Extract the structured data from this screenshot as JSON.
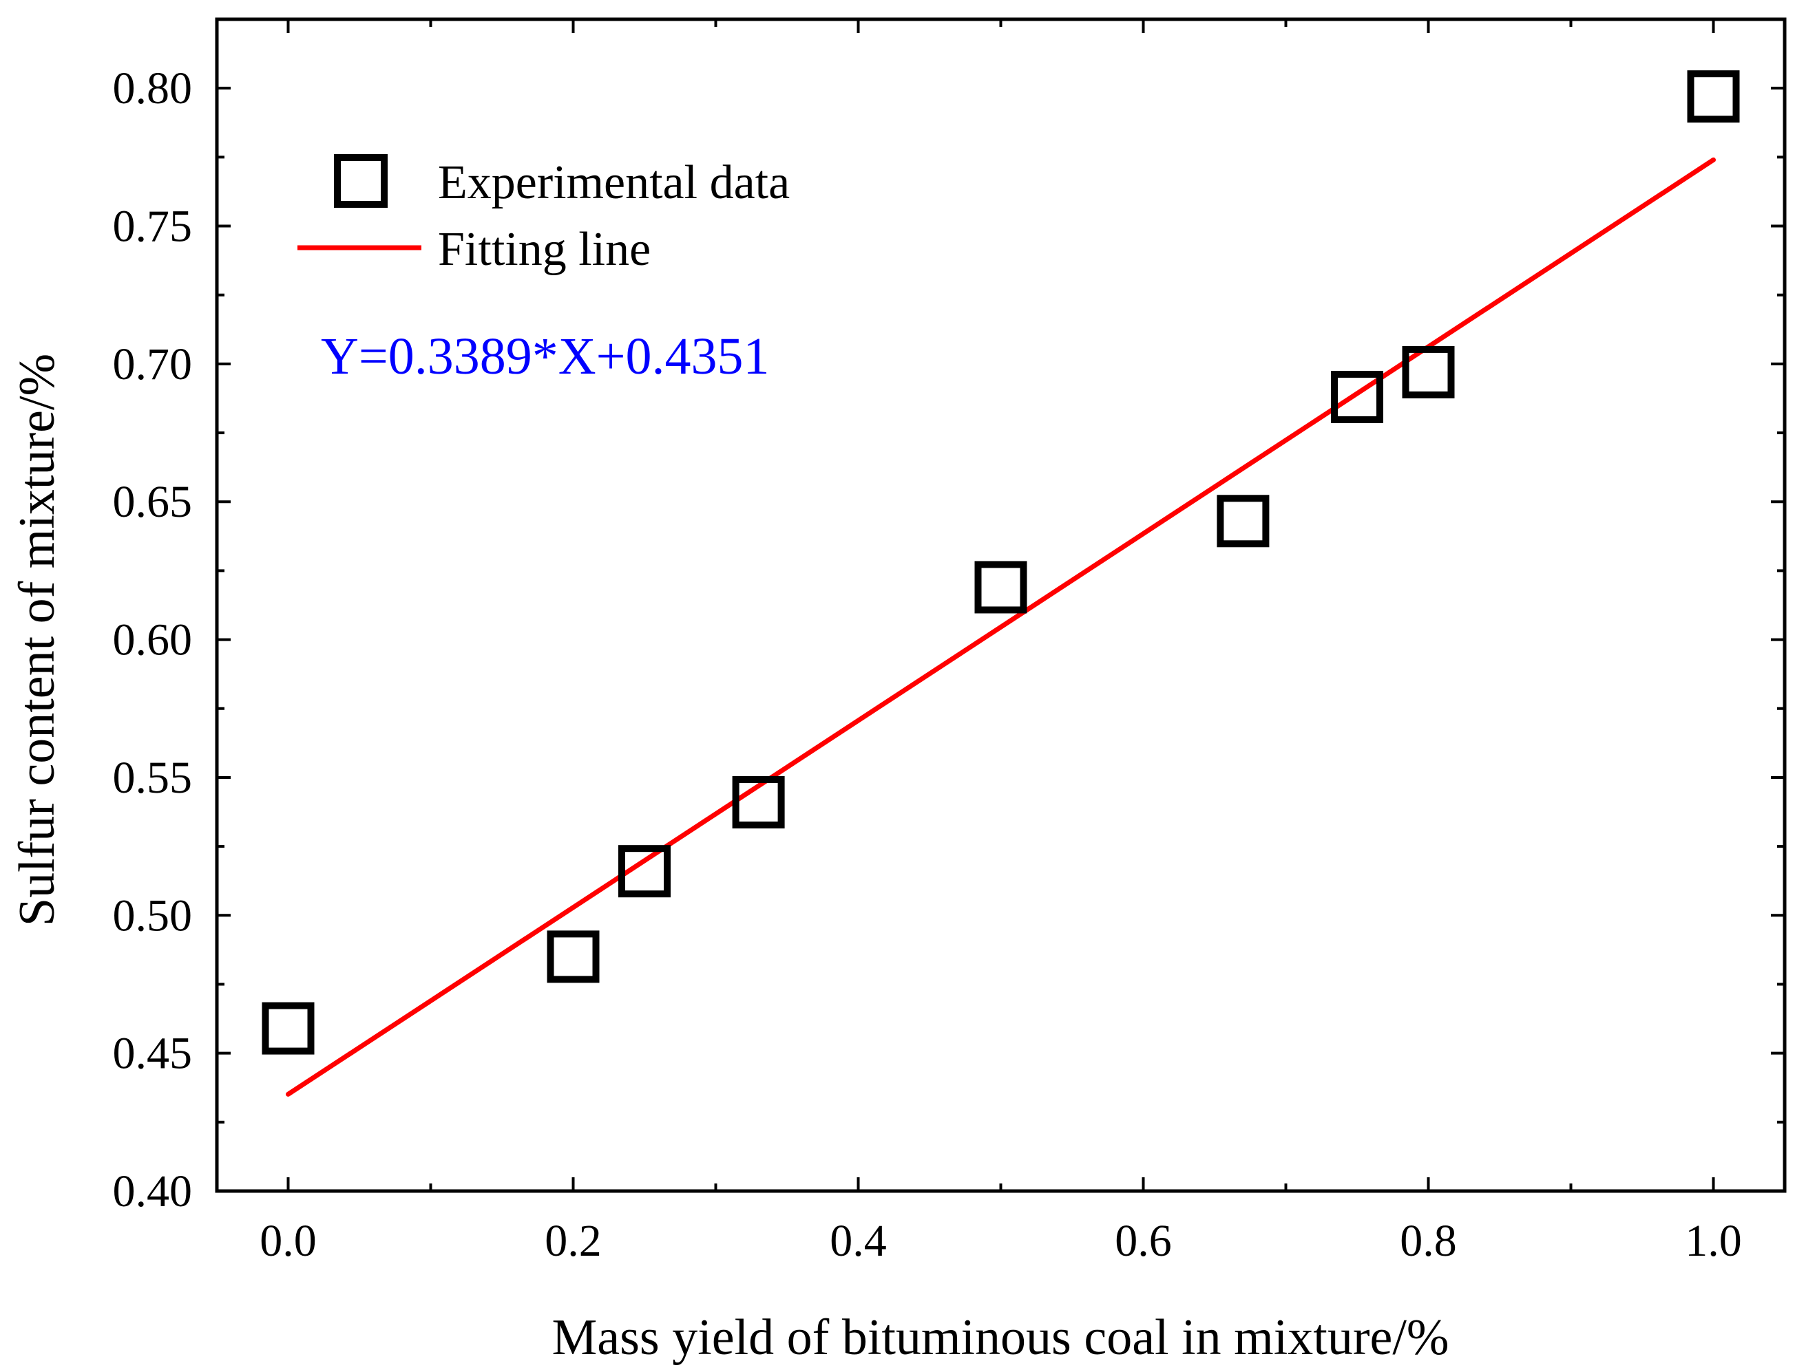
{
  "chart_data": {
    "type": "scatter",
    "title": "",
    "xlabel": "Mass yield of bituminous coal in mixture/%",
    "ylabel": "Sulfur content of mixture/%",
    "xlim": [
      -0.05,
      1.05
    ],
    "ylim": [
      0.4,
      0.825
    ],
    "x_ticks": [
      0.0,
      0.2,
      0.4,
      0.6,
      0.8,
      1.0
    ],
    "x_tick_labels": [
      "0.0",
      "0.2",
      "0.4",
      "0.6",
      "0.8",
      "1.0"
    ],
    "x_minor_ticks": [
      0.1,
      0.3,
      0.5,
      0.7,
      0.9
    ],
    "y_ticks": [
      0.4,
      0.45,
      0.5,
      0.55,
      0.6,
      0.65,
      0.7,
      0.75,
      0.8
    ],
    "y_tick_labels": [
      "0.40",
      "0.45",
      "0.50",
      "0.55",
      "0.60",
      "0.65",
      "0.70",
      "0.75",
      "0.80"
    ],
    "y_minor_ticks": [
      0.425,
      0.475,
      0.525,
      0.575,
      0.625,
      0.675,
      0.725,
      0.775
    ],
    "grid": false,
    "series": [
      {
        "name": "Experimental data",
        "kind": "scatter",
        "marker": "open-square",
        "color": "#000000",
        "points": [
          {
            "x": 0.0,
            "y": 0.459
          },
          {
            "x": 0.2,
            "y": 0.485
          },
          {
            "x": 0.25,
            "y": 0.516
          },
          {
            "x": 0.33,
            "y": 0.541
          },
          {
            "x": 0.5,
            "y": 0.619
          },
          {
            "x": 0.67,
            "y": 0.643
          },
          {
            "x": 0.75,
            "y": 0.688
          },
          {
            "x": 0.8,
            "y": 0.697
          },
          {
            "x": 1.0,
            "y": 0.797
          }
        ]
      },
      {
        "name": "Fitting line",
        "kind": "line",
        "color": "#ff0000",
        "slope": 0.3389,
        "intercept": 0.4351,
        "x_range": [
          0.0,
          1.0
        ]
      }
    ],
    "legend": {
      "position": "top-left",
      "entries": [
        "Experimental data",
        "Fitting line"
      ]
    },
    "annotation": {
      "text": "Y=0.3389*X+0.4351",
      "color": "#0000ff"
    }
  }
}
